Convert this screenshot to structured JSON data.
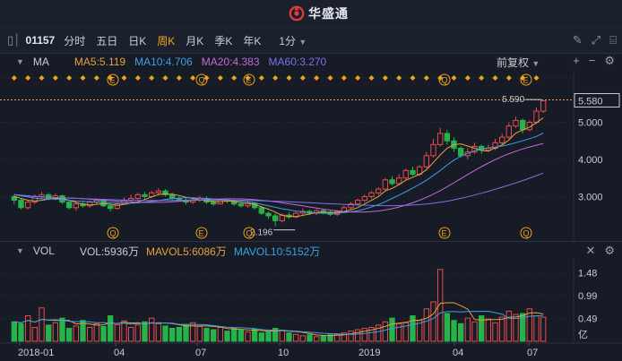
{
  "brand": {
    "name": "华盛通",
    "logo_color": "#e43b3b"
  },
  "toolbar": {
    "code": "01157",
    "periods": [
      "分时",
      "五日",
      "日K",
      "周K",
      "月K",
      "季K",
      "年K"
    ],
    "active_period": "周K",
    "minute_select": "1分",
    "icons": [
      "panel-toggle-icon",
      "pen-icon",
      "expand-icon",
      "layout-icon"
    ]
  },
  "indicator": {
    "name": "MA",
    "ma5": "MA5:5.119",
    "ma10": "MA10:4.706",
    "ma20": "MA20:4.383",
    "ma60": "MA60:3.270",
    "adjust": "前复权",
    "colors": {
      "ma5": "#e6a23c",
      "ma10": "#3aa0e8",
      "ma20": "#c36ad8",
      "ma60": "#7b72e8"
    }
  },
  "price_axis": {
    "labels": [
      "5.580",
      "5.000",
      "4.000",
      "3.000"
    ],
    "current": "5.580"
  },
  "annotations": {
    "high": "5.590",
    "low": "2.196",
    "event_marks": [
      "E",
      "Q",
      "E",
      "Q",
      "E",
      "Q"
    ]
  },
  "volume": {
    "name": "VOL",
    "vol": "VOL:5936万",
    "mavol5": "MAVOL5:6086万",
    "mavol10": "MAVOL10:5152万",
    "axis_labels": [
      "1.48",
      "0.99",
      "0.49",
      "亿"
    ],
    "colors": {
      "mavol5": "#e6a23c",
      "mavol10": "#3aa0e8"
    }
  },
  "x_axis": {
    "labels": [
      "2018-01",
      "04",
      "07",
      "10",
      "2019",
      "04",
      "07"
    ]
  },
  "colors": {
    "up": "#e84c4c",
    "down": "#26b34a",
    "dot": "#f0a21a"
  },
  "chart_data": {
    "type": "candlestick",
    "ylim": [
      1.9,
      6.05
    ],
    "volume_ylim": [
      0,
      1.7
    ],
    "candles": [
      [
        3.0,
        2.9,
        3.05,
        2.8
      ],
      [
        2.9,
        2.7,
        2.95,
        2.65
      ],
      [
        2.7,
        2.85,
        2.9,
        2.65
      ],
      [
        2.85,
        3.0,
        3.05,
        2.8
      ],
      [
        3.0,
        3.05,
        3.12,
        2.95
      ],
      [
        3.05,
        2.95,
        3.1,
        2.9
      ],
      [
        2.95,
        3.02,
        3.08,
        2.9
      ],
      [
        3.02,
        2.85,
        3.05,
        2.8
      ],
      [
        2.85,
        2.7,
        2.9,
        2.65
      ],
      [
        2.7,
        2.8,
        2.85,
        2.62
      ],
      [
        2.8,
        2.75,
        2.88,
        2.7
      ],
      [
        2.75,
        2.85,
        2.9,
        2.7
      ],
      [
        2.85,
        2.9,
        2.95,
        2.8
      ],
      [
        2.9,
        2.75,
        2.92,
        2.72
      ],
      [
        2.75,
        2.68,
        2.8,
        2.6
      ],
      [
        2.68,
        2.8,
        2.85,
        2.65
      ],
      [
        2.8,
        2.9,
        2.98,
        2.78
      ],
      [
        2.9,
        2.95,
        3.05,
        2.85
      ],
      [
        2.95,
        3.05,
        3.1,
        2.92
      ],
      [
        3.05,
        3.0,
        3.12,
        2.95
      ],
      [
        3.0,
        3.1,
        3.15,
        2.95
      ],
      [
        3.1,
        3.15,
        3.22,
        3.05
      ],
      [
        3.15,
        3.05,
        3.2,
        3.0
      ],
      [
        3.05,
        2.95,
        3.1,
        2.9
      ],
      [
        2.95,
        2.9,
        3.0,
        2.85
      ],
      [
        2.9,
        2.85,
        2.95,
        2.78
      ],
      [
        2.85,
        2.9,
        2.95,
        2.8
      ],
      [
        2.9,
        2.95,
        3.02,
        2.85
      ],
      [
        2.95,
        2.85,
        3.0,
        2.8
      ],
      [
        2.85,
        2.8,
        2.9,
        2.75
      ],
      [
        2.8,
        2.9,
        2.95,
        2.78
      ],
      [
        2.9,
        2.88,
        2.95,
        2.82
      ],
      [
        2.88,
        2.8,
        2.92,
        2.75
      ],
      [
        2.8,
        2.75,
        2.85,
        2.7
      ],
      [
        2.75,
        2.82,
        2.88,
        2.7
      ],
      [
        2.82,
        2.7,
        2.85,
        2.65
      ],
      [
        2.7,
        2.55,
        2.75,
        2.5
      ],
      [
        2.55,
        2.48,
        2.6,
        2.4
      ],
      [
        2.48,
        2.35,
        2.55,
        2.2
      ],
      [
        2.35,
        2.5,
        2.55,
        2.3
      ],
      [
        2.5,
        2.45,
        2.58,
        2.4
      ],
      [
        2.45,
        2.55,
        2.6,
        2.42
      ],
      [
        2.55,
        2.6,
        2.68,
        2.5
      ],
      [
        2.6,
        2.55,
        2.65,
        2.5
      ],
      [
        2.55,
        2.62,
        2.66,
        2.5
      ],
      [
        2.62,
        2.58,
        2.66,
        2.52
      ],
      [
        2.58,
        2.52,
        2.62,
        2.48
      ],
      [
        2.52,
        2.6,
        2.64,
        2.48
      ],
      [
        2.6,
        2.7,
        2.75,
        2.55
      ],
      [
        2.7,
        2.8,
        2.85,
        2.65
      ],
      [
        2.8,
        2.9,
        2.95,
        2.75
      ],
      [
        2.9,
        3.0,
        3.05,
        2.85
      ],
      [
        3.0,
        3.1,
        3.15,
        2.95
      ],
      [
        3.1,
        3.2,
        3.25,
        3.05
      ],
      [
        3.2,
        3.45,
        3.5,
        3.15
      ],
      [
        3.45,
        3.35,
        3.55,
        3.3
      ],
      [
        3.35,
        3.5,
        3.6,
        3.3
      ],
      [
        3.5,
        3.7,
        3.75,
        3.45
      ],
      [
        3.7,
        3.6,
        3.8,
        3.55
      ],
      [
        3.6,
        3.8,
        3.85,
        3.55
      ],
      [
        3.8,
        4.1,
        4.2,
        3.75
      ],
      [
        4.1,
        4.4,
        4.55,
        4.05
      ],
      [
        4.4,
        4.7,
        4.85,
        4.35
      ],
      [
        4.7,
        4.5,
        4.8,
        4.4
      ],
      [
        4.5,
        4.3,
        4.6,
        4.2
      ],
      [
        4.3,
        4.1,
        4.35,
        4.05
      ],
      [
        4.1,
        4.2,
        4.3,
        4.0
      ],
      [
        4.2,
        4.35,
        4.45,
        4.15
      ],
      [
        4.35,
        4.25,
        4.4,
        4.15
      ],
      [
        4.25,
        4.3,
        4.4,
        4.2
      ],
      [
        4.3,
        4.45,
        4.55,
        4.25
      ],
      [
        4.45,
        4.6,
        4.7,
        4.4
      ],
      [
        4.6,
        4.9,
        5.0,
        4.55
      ],
      [
        4.9,
        5.05,
        5.15,
        4.85
      ],
      [
        5.05,
        4.8,
        5.1,
        4.7
      ],
      [
        4.8,
        5.0,
        5.05,
        4.75
      ],
      [
        5.0,
        5.3,
        5.4,
        4.95
      ],
      [
        5.3,
        5.58,
        5.59,
        5.25
      ]
    ],
    "ma5": [
      3.0,
      2.95,
      2.9,
      2.88,
      2.9,
      2.93,
      2.95,
      2.96,
      2.9,
      2.84,
      2.8,
      2.77,
      2.79,
      2.81,
      2.79,
      2.76,
      2.79,
      2.82,
      2.86,
      2.92,
      2.99,
      3.05,
      3.07,
      3.06,
      3.03,
      2.98,
      2.95,
      2.91,
      2.89,
      2.87,
      2.86,
      2.88,
      2.87,
      2.84,
      2.81,
      2.79,
      2.72,
      2.66,
      2.58,
      2.49,
      2.47,
      2.46,
      2.49,
      2.53,
      2.57,
      2.58,
      2.57,
      2.57,
      2.6,
      2.64,
      2.7,
      2.8,
      2.9,
      3.0,
      3.15,
      3.22,
      3.32,
      3.44,
      3.52,
      3.6,
      3.72,
      3.92,
      4.12,
      4.3,
      4.4,
      4.42,
      4.36,
      4.3,
      4.24,
      4.22,
      4.31,
      4.39,
      4.52,
      4.71,
      4.79,
      4.87,
      4.99,
      5.12
    ],
    "ma10": [
      3.05,
      3.02,
      2.99,
      2.96,
      2.94,
      2.93,
      2.93,
      2.92,
      2.9,
      2.88,
      2.87,
      2.86,
      2.85,
      2.84,
      2.83,
      2.82,
      2.82,
      2.82,
      2.83,
      2.85,
      2.87,
      2.89,
      2.92,
      2.95,
      2.96,
      2.97,
      2.97,
      2.96,
      2.95,
      2.93,
      2.92,
      2.91,
      2.9,
      2.88,
      2.86,
      2.83,
      2.79,
      2.75,
      2.71,
      2.67,
      2.64,
      2.61,
      2.59,
      2.57,
      2.56,
      2.55,
      2.55,
      2.55,
      2.57,
      2.59,
      2.62,
      2.66,
      2.72,
      2.78,
      2.86,
      2.95,
      3.04,
      3.13,
      3.23,
      3.33,
      3.44,
      3.57,
      3.7,
      3.85,
      3.98,
      4.09,
      4.16,
      4.23,
      4.28,
      4.31,
      4.33,
      4.36,
      4.4,
      4.45,
      4.5,
      4.56,
      4.62,
      4.71
    ]
  }
}
